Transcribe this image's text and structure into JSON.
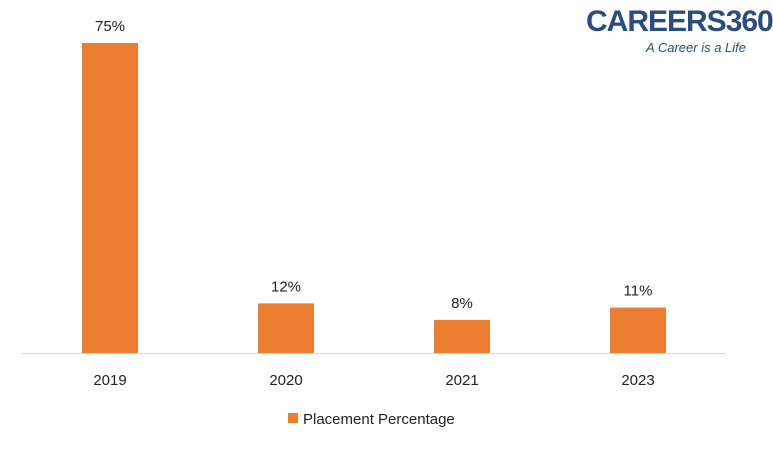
{
  "logo": {
    "text": "CAREERS360",
    "tagline": "A Career is a Life",
    "color": "#2b4d7d"
  },
  "chart_data": {
    "type": "bar",
    "categories": [
      "2019",
      "2020",
      "2021",
      "2023"
    ],
    "series": [
      {
        "name": "Placement Percentage",
        "values": [
          75,
          12,
          8,
          11
        ],
        "labels": [
          "75%",
          "12%",
          "8%",
          "11%"
        ],
        "color": "#ed7d31"
      }
    ],
    "title": "",
    "xlabel": "",
    "ylabel": "",
    "ylim": [
      0,
      75
    ],
    "grid": false,
    "legend": "bottom-center",
    "axis_color": "#d9d9d9"
  }
}
